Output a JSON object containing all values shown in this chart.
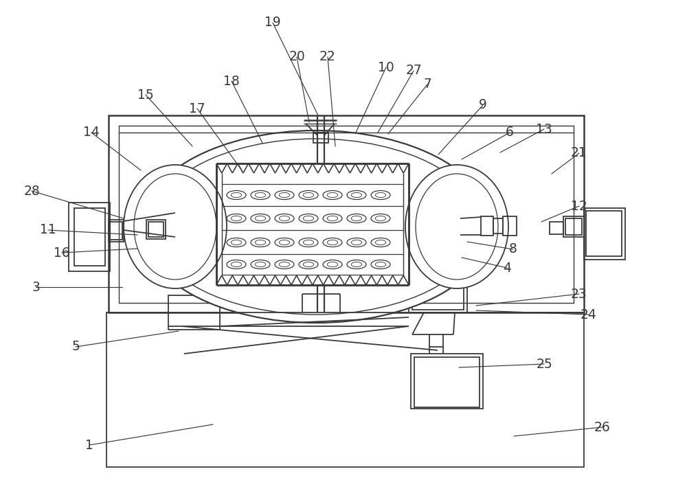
{
  "bg_color": "#ffffff",
  "line_color": "#3a3a3a",
  "lw": 1.3,
  "fig_width": 10.0,
  "fig_height": 7.12,
  "label_points": {
    "1": [
      130,
      648,
      310,
      618
    ],
    "3": [
      52,
      418,
      178,
      418
    ],
    "4": [
      738,
      390,
      672,
      375
    ],
    "5": [
      110,
      505,
      260,
      482
    ],
    "6": [
      742,
      193,
      672,
      232
    ],
    "7": [
      622,
      123,
      565,
      195
    ],
    "8": [
      747,
      363,
      680,
      352
    ],
    "9": [
      703,
      153,
      638,
      225
    ],
    "10": [
      562,
      98,
      518,
      193
    ],
    "11": [
      70,
      335,
      200,
      342
    ],
    "12": [
      843,
      300,
      788,
      323
    ],
    "13": [
      792,
      188,
      728,
      222
    ],
    "14": [
      133,
      193,
      205,
      248
    ],
    "15": [
      212,
      138,
      280,
      213
    ],
    "16": [
      90,
      368,
      200,
      362
    ],
    "17": [
      287,
      158,
      352,
      248
    ],
    "18": [
      337,
      118,
      382,
      208
    ],
    "19": [
      397,
      33,
      463,
      168
    ],
    "20": [
      432,
      83,
      450,
      178
    ],
    "21": [
      843,
      223,
      803,
      253
    ],
    "22": [
      477,
      83,
      488,
      213
    ],
    "23": [
      843,
      428,
      693,
      445
    ],
    "24": [
      857,
      458,
      693,
      452
    ],
    "25": [
      792,
      530,
      668,
      535
    ],
    "26": [
      877,
      622,
      748,
      635
    ],
    "27": [
      602,
      103,
      550,
      193
    ],
    "28": [
      46,
      278,
      180,
      318
    ]
  }
}
